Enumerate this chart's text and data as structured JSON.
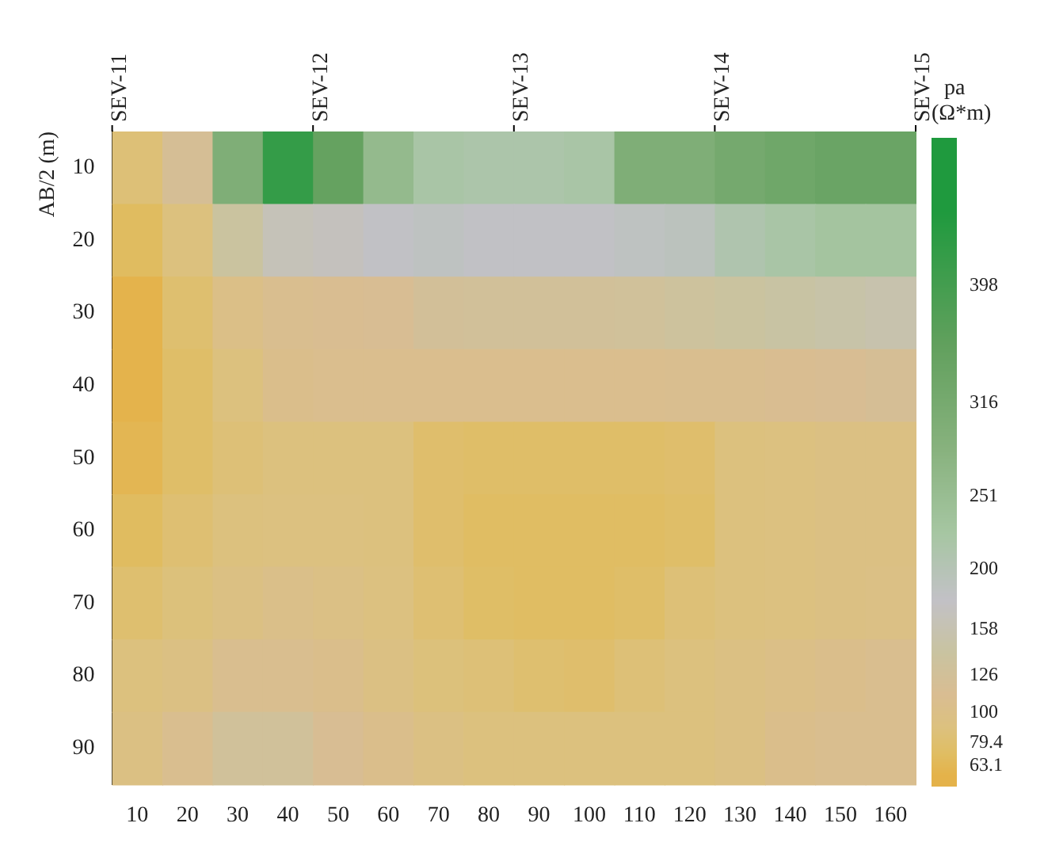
{
  "chart_data": {
    "type": "heatmap",
    "ylabel": "AB/2 (m)",
    "clabel": "pa (Ω*m)",
    "categories": [
      "10",
      "20",
      "30",
      "40",
      "50",
      "60",
      "70",
      "80",
      "90",
      "100",
      "110",
      "120",
      "130",
      "140",
      "150",
      "160"
    ],
    "y_categories": [
      "10",
      "20",
      "30",
      "40",
      "50",
      "60",
      "70",
      "80",
      "90"
    ],
    "cells": [
      [
        85,
        120,
        300,
        420,
        350,
        260,
        220,
        215,
        215,
        220,
        300,
        300,
        320,
        330,
        340,
        340
      ],
      [
        70,
        90,
        140,
        165,
        170,
        180,
        185,
        180,
        180,
        180,
        185,
        190,
        210,
        220,
        230,
        230
      ],
      [
        58,
        80,
        100,
        110,
        112,
        115,
        125,
        128,
        128,
        128,
        130,
        135,
        140,
        145,
        150,
        155
      ],
      [
        58,
        75,
        90,
        105,
        108,
        108,
        108,
        108,
        108,
        108,
        108,
        110,
        110,
        112,
        115,
        120
      ],
      [
        62,
        75,
        85,
        90,
        90,
        90,
        78,
        75,
        75,
        75,
        75,
        78,
        90,
        92,
        95,
        95
      ],
      [
        70,
        82,
        90,
        92,
        92,
        90,
        78,
        72,
        72,
        72,
        72,
        75,
        90,
        92,
        95,
        95
      ],
      [
        80,
        88,
        95,
        102,
        98,
        92,
        82,
        74,
        72,
        72,
        75,
        85,
        90,
        92,
        95,
        98
      ],
      [
        90,
        95,
        110,
        110,
        105,
        95,
        88,
        85,
        80,
        78,
        85,
        90,
        95,
        100,
        105,
        110
      ],
      [
        95,
        110,
        130,
        130,
        115,
        105,
        95,
        90,
        90,
        90,
        90,
        90,
        95,
        105,
        110,
        110
      ]
    ],
    "clim": [
      50.1,
      501
    ],
    "cticks": [
      63.1,
      79.4,
      100,
      126,
      158,
      200,
      251,
      316,
      398
    ],
    "colors": [
      "#e4b24a",
      "#e0bd62",
      "#dcc17e",
      "#d9bd92",
      "#c9c3a0",
      "#c2c1c6",
      "#a6c6a2",
      "#88b27e",
      "#61a05d",
      "#1f9a3e"
    ],
    "annotations": [
      "SEV-11",
      "SEV-12",
      "SEV-13",
      "SEV-14",
      "SEV-15"
    ]
  }
}
